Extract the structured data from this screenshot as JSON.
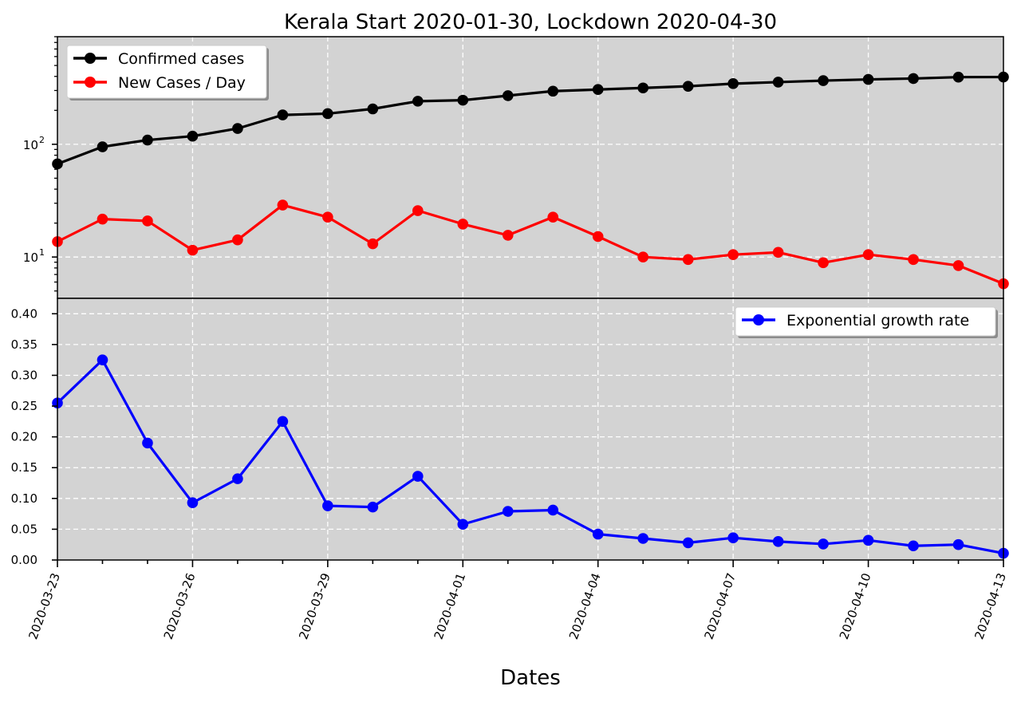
{
  "figure": {
    "title": "Kerala Start 2020-01-30, Lockdown 2020-04-30",
    "xlabel": "Dates"
  },
  "chart_data": [
    {
      "type": "line",
      "panel": "top",
      "yscale": "log",
      "ylim": [
        4.3,
        900
      ],
      "y_tick_labels": [
        {
          "value": 10,
          "base": "10",
          "exp": "1"
        },
        {
          "value": 100,
          "base": "10",
          "exp": "2"
        }
      ],
      "x": [
        "2020-03-23",
        "2020-03-24",
        "2020-03-25",
        "2020-03-26",
        "2020-03-27",
        "2020-03-28",
        "2020-03-29",
        "2020-03-30",
        "2020-03-31",
        "2020-04-01",
        "2020-04-02",
        "2020-04-03",
        "2020-04-04",
        "2020-04-05",
        "2020-04-06",
        "2020-04-07",
        "2020-04-08",
        "2020-04-09",
        "2020-04-10",
        "2020-04-11",
        "2020-04-12",
        "2020-04-13"
      ],
      "series": [
        {
          "name": "Confirmed cases",
          "color": "#000000",
          "values": [
            67,
            95,
            109,
            118,
            138,
            182,
            187,
            206,
            241,
            246,
            270,
            296,
            306,
            316,
            327,
            345,
            356,
            367,
            376,
            383,
            394,
            395
          ]
        },
        {
          "name": "New Cases / Day",
          "color": "#ff0000",
          "values": [
            13.7,
            21.7,
            20.9,
            11.5,
            14.2,
            28.9,
            22.6,
            13.1,
            25.8,
            19.6,
            15.6,
            22.6,
            15.2,
            10.0,
            9.5,
            10.5,
            11.0,
            8.9,
            10.5,
            9.5,
            8.4,
            5.8
          ]
        }
      ],
      "legend_position": "upper left",
      "grid": true
    },
    {
      "type": "line",
      "panel": "bottom",
      "ylim": [
        0.0,
        0.425
      ],
      "y_ticks": [
        "0.00",
        "0.05",
        "0.10",
        "0.15",
        "0.20",
        "0.25",
        "0.30",
        "0.35",
        "0.40"
      ],
      "x": [
        "2020-03-23",
        "2020-03-24",
        "2020-03-25",
        "2020-03-26",
        "2020-03-27",
        "2020-03-28",
        "2020-03-29",
        "2020-03-30",
        "2020-03-31",
        "2020-04-01",
        "2020-04-02",
        "2020-04-03",
        "2020-04-04",
        "2020-04-05",
        "2020-04-06",
        "2020-04-07",
        "2020-04-08",
        "2020-04-09",
        "2020-04-10",
        "2020-04-11",
        "2020-04-12",
        "2020-04-13"
      ],
      "x_tick_labels": [
        "2020-03-23",
        "2020-03-26",
        "2020-03-29",
        "2020-04-01",
        "2020-04-04",
        "2020-04-07",
        "2020-04-10",
        "2020-04-13"
      ],
      "series": [
        {
          "name": "Exponential growth rate",
          "color": "#0000ff",
          "values": [
            0.255,
            0.325,
            0.19,
            0.093,
            0.132,
            0.225,
            0.088,
            0.086,
            0.136,
            0.058,
            0.079,
            0.081,
            0.042,
            0.035,
            0.028,
            0.036,
            0.03,
            0.026,
            0.032,
            0.023,
            0.025,
            0.011
          ]
        }
      ],
      "legend_position": "upper right",
      "grid": true
    }
  ],
  "colors": {
    "panel_bg": "#d3d3d3",
    "grid": "#ffffff"
  }
}
